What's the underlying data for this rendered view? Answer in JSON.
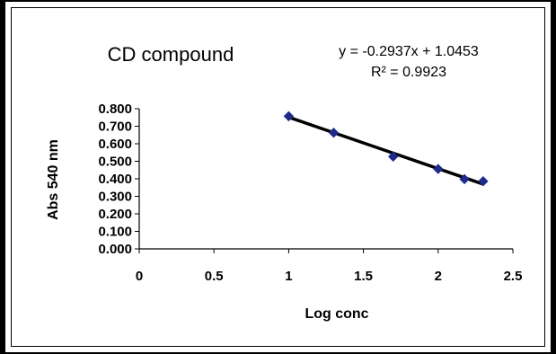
{
  "chart_data": {
    "type": "scatter",
    "title": "CD compound",
    "xlabel": "Log conc",
    "ylabel": "Abs 540 nm",
    "xlim": [
      0,
      2.5
    ],
    "ylim": [
      0,
      0.8
    ],
    "x_ticks": [
      "0",
      "0.5",
      "1",
      "1.5",
      "2",
      "2.5"
    ],
    "y_ticks": [
      "0.000",
      "0.100",
      "0.200",
      "0.300",
      "0.400",
      "0.500",
      "0.600",
      "0.700",
      "0.800"
    ],
    "series": [
      {
        "x": [
          1.0,
          1.301,
          1.699,
          2.0,
          2.176,
          2.301
        ],
        "y": [
          0.757,
          0.663,
          0.527,
          0.456,
          0.398,
          0.386
        ]
      }
    ],
    "trendline": {
      "equation": "y = -0.2937x + 1.0453",
      "r_squared": "R² = 0.9923",
      "slope": -0.2937,
      "intercept": 1.0453
    },
    "grid": false,
    "legend": "none",
    "marker_color": "#1f2a8a",
    "line_color": "#000000"
  }
}
